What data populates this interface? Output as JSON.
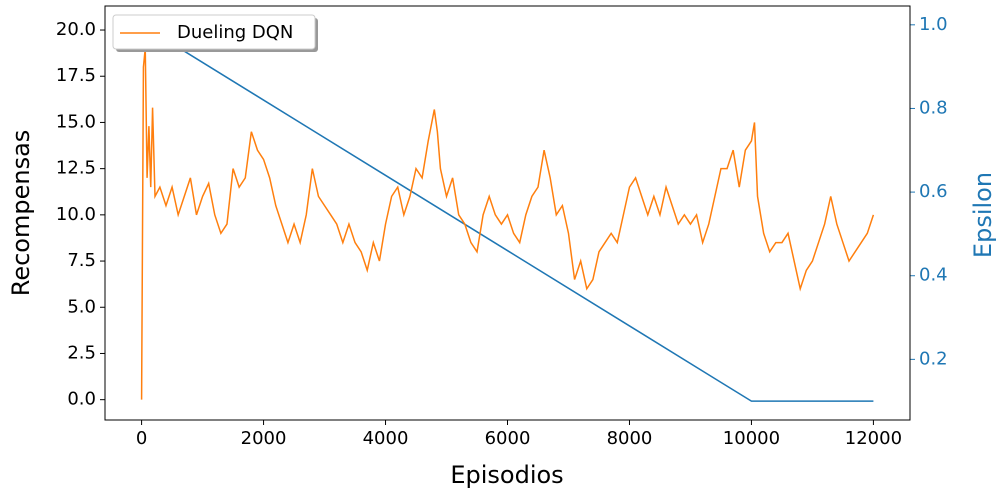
{
  "chart_data": {
    "type": "line",
    "xlabel": "Episodios",
    "ylabel": "Recompensas",
    "y2label": "Epsilon",
    "xlim": [
      -600,
      12600
    ],
    "ylim": [
      -1.1,
      21.3
    ],
    "y2lim": [
      0.055,
      1.045
    ],
    "xticks": [
      0,
      2000,
      4000,
      6000,
      8000,
      10000,
      12000
    ],
    "yticks": [
      {
        "value": 0,
        "label": "0.0"
      },
      2.5,
      {
        "value": 5,
        "label": "5.0"
      },
      7.5,
      {
        "value": 10,
        "label": "10.0"
      },
      12.5,
      {
        "value": 15,
        "label": "15.0"
      },
      17.5,
      {
        "value": 20,
        "label": "20.0"
      }
    ],
    "y2ticks": [
      0.2,
      0.4,
      0.6,
      0.8,
      {
        "value": 1,
        "label": "1.0"
      }
    ],
    "y2color": "#1f77b4",
    "legend": "upper left",
    "series": [
      {
        "name": "Dueling DQN",
        "color": "#ff7f0e",
        "x": [
          0,
          30,
          60,
          90,
          120,
          150,
          180,
          220,
          300,
          400,
          500,
          600,
          700,
          800,
          900,
          1000,
          1100,
          1200,
          1300,
          1400,
          1500,
          1600,
          1700,
          1800,
          1900,
          2000,
          2100,
          2200,
          2300,
          2400,
          2500,
          2600,
          2700,
          2800,
          2900,
          3000,
          3100,
          3200,
          3300,
          3400,
          3500,
          3600,
          3700,
          3800,
          3900,
          4000,
          4100,
          4200,
          4300,
          4400,
          4500,
          4600,
          4700,
          4800,
          4850,
          4900,
          5000,
          5100,
          5200,
          5300,
          5400,
          5500,
          5600,
          5700,
          5800,
          5900,
          6000,
          6100,
          6200,
          6300,
          6400,
          6500,
          6600,
          6700,
          6800,
          6900,
          7000,
          7100,
          7200,
          7300,
          7400,
          7500,
          7600,
          7700,
          7800,
          7900,
          8000,
          8100,
          8200,
          8300,
          8400,
          8500,
          8600,
          8700,
          8800,
          8900,
          9000,
          9100,
          9200,
          9300,
          9400,
          9500,
          9600,
          9700,
          9800,
          9900,
          10000,
          10050,
          10100,
          10200,
          10300,
          10400,
          10500,
          10600,
          10700,
          10800,
          10900,
          11000,
          11100,
          11200,
          11300,
          11400,
          11500,
          11600,
          11700,
          11800,
          11900,
          12000
        ],
        "values": [
          0,
          18,
          19,
          12,
          14.8,
          11.5,
          15.8,
          11,
          11.5,
          10.5,
          11.5,
          10,
          11,
          12,
          10,
          11,
          11.7,
          10,
          9,
          9.5,
          12.5,
          11.5,
          12,
          14.5,
          13.5,
          13,
          12,
          10.5,
          9.5,
          8.5,
          9.5,
          8.5,
          10,
          12.5,
          11,
          10.5,
          10,
          9.5,
          8.5,
          9.5,
          8.5,
          8,
          7,
          8.5,
          7.5,
          9.5,
          11,
          11.5,
          10,
          11,
          12.5,
          12,
          14,
          15.7,
          14.5,
          12.5,
          11,
          12,
          10,
          9.5,
          8.5,
          8,
          10,
          11,
          10,
          9.5,
          10,
          9,
          8.5,
          10,
          11,
          11.5,
          13.5,
          12,
          10,
          10.5,
          9,
          6.5,
          7.5,
          6,
          6.5,
          8,
          8.5,
          9,
          8.5,
          10,
          11.5,
          12,
          11,
          10,
          11,
          10,
          11.5,
          10.5,
          9.5,
          10,
          9.5,
          10,
          8.5,
          9.5,
          11,
          12.5,
          12.5,
          13.5,
          11.5,
          13.5,
          14,
          15,
          11,
          9,
          8,
          8.5,
          8.5,
          9,
          7.5,
          6,
          7,
          7.5,
          8.5,
          9.5,
          11,
          9.5,
          8.5,
          7.5,
          8,
          8.5,
          9,
          10
        ]
      },
      {
        "color": "#1f77b4",
        "axis": "y2",
        "x": [
          0,
          9500,
          10000,
          12000
        ],
        "values": [
          1.0,
          0.145,
          0.1,
          0.1
        ]
      }
    ]
  }
}
